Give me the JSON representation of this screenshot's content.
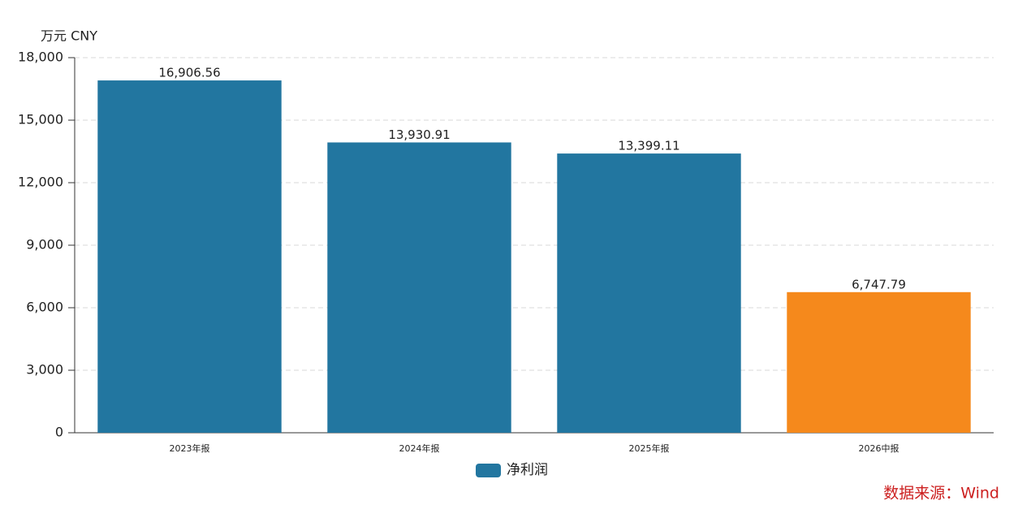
{
  "chart_data": {
    "type": "bar",
    "y_label": "万元  CNY",
    "source": "数据来源：Wind",
    "categories": [
      "2023年报",
      "2024年报",
      "2025年报",
      "2026中报"
    ],
    "series": [
      {
        "name": "净利润",
        "color": "#2276a0",
        "values": [
          16906.56,
          13930.91,
          13399.11,
          6747.79
        ],
        "value_labels": [
          "16,906.56",
          "13,930.91",
          "13,399.11",
          "6,747.79"
        ],
        "bar_colors": [
          "#2276a0",
          "#2276a0",
          "#2276a0",
          "#f5891c"
        ]
      }
    ],
    "ylim": [
      0,
      18000
    ],
    "yticks": [
      0,
      {
        "value": 3000,
        "label": "3,000"
      },
      {
        "value": 6000,
        "label": "6,000"
      },
      {
        "value": 9000,
        "label": "9,000"
      },
      {
        "value": 12000,
        "label": "12,000"
      },
      {
        "value": 15000,
        "label": "15,000"
      },
      {
        "value": 18000,
        "label": "18,000"
      }
    ],
    "grid": true
  }
}
